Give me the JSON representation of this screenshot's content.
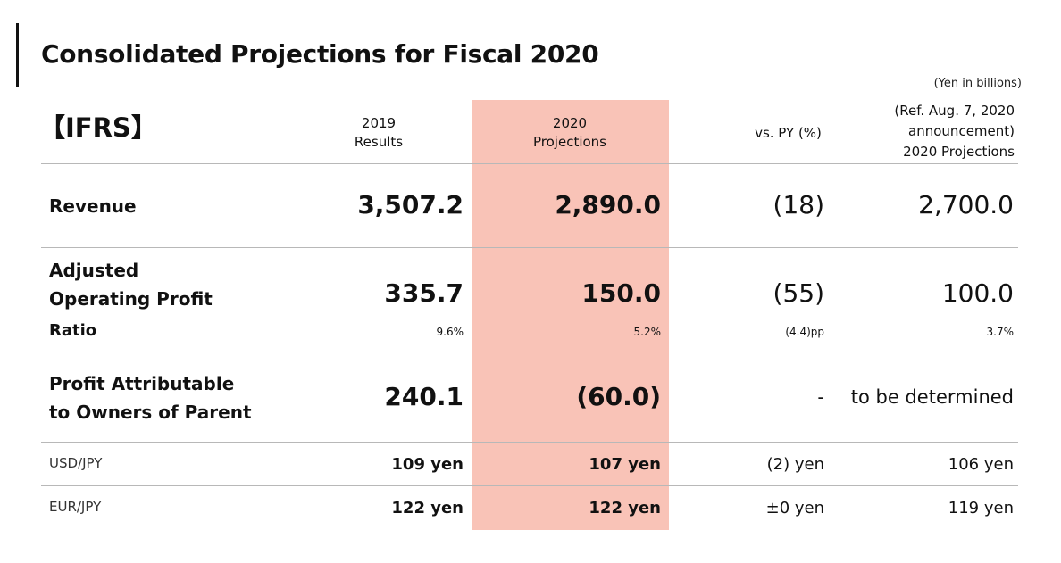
{
  "page": {
    "title": "Consolidated Projections for Fiscal 2020",
    "unit": "(Yen in billions)",
    "standard": "【IFRS】"
  },
  "columns": {
    "y2019_line1": "2019",
    "y2019_line2": "Results",
    "y2020_line1": "2020",
    "y2020_line2": "Projections",
    "vs": "vs. PY (%)",
    "ref_line1": "(Ref. Aug. 7, 2020",
    "ref_line2": "announcement)",
    "ref_line3": "2020 Projections"
  },
  "rows": {
    "revenue": {
      "label": "Revenue",
      "y2019": "3,507.2",
      "y2020": "2,890.0",
      "vs": "(18)",
      "ref": "2,700.0"
    },
    "aop": {
      "label_line1": "Adjusted",
      "label_line2": "Operating Profit",
      "ratio_label": "Ratio",
      "y2019": "335.7",
      "y2020": "150.0",
      "vs": "(55)",
      "ref": "100.0",
      "ratio_2019": "9.6%",
      "ratio_2020": "5.2%",
      "ratio_vs": "(4.4)pp",
      "ratio_ref": "3.7%"
    },
    "profit": {
      "label_line1": "Profit Attributable",
      "label_line2": "to Owners of Parent",
      "y2019": "240.1",
      "y2020": "(60.0)",
      "vs": "-",
      "ref": "to be determined"
    },
    "usd": {
      "label": "USD/JPY",
      "y2019": "109 yen",
      "y2020": "107 yen",
      "vs": "(2) yen",
      "ref": "106 yen"
    },
    "eur": {
      "label": "EUR/JPY",
      "y2019": "122 yen",
      "y2020": "122 yen",
      "vs": "±0 yen",
      "ref": "119 yen"
    }
  },
  "colors": {
    "highlight": "#f9c3b7",
    "rule": "#b8b8b8",
    "text": "#111111"
  }
}
